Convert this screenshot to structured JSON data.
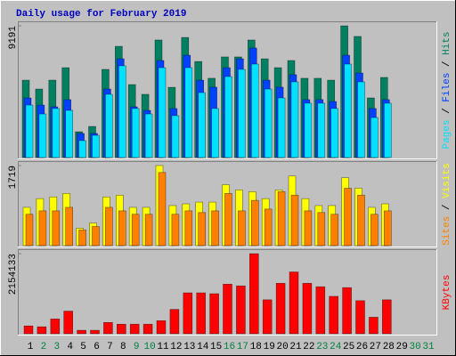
{
  "chart_data": {
    "type": "bar",
    "title": "Daily usage for February 2019",
    "categories": [
      "1",
      "2",
      "3",
      "4",
      "5",
      "6",
      "7",
      "8",
      "9",
      "10",
      "11",
      "12",
      "13",
      "14",
      "15",
      "16",
      "17",
      "18",
      "19",
      "20",
      "21",
      "22",
      "23",
      "24",
      "25",
      "26",
      "27",
      "28",
      "29",
      "30",
      "31"
    ],
    "category_colors": [
      "#000000",
      "#008040",
      "#008040",
      "#000000",
      "#000000",
      "#000000",
      "#000000",
      "#000000",
      "#008040",
      "#008040",
      "#000000",
      "#000000",
      "#000000",
      "#000000",
      "#000000",
      "#008040",
      "#008040",
      "#000000",
      "#000000",
      "#000000",
      "#000000",
      "#000000",
      "#008040",
      "#008040",
      "#000000",
      "#000000",
      "#000000",
      "#000000",
      "#000000",
      "#008040",
      "#008040"
    ],
    "legend_separator": " / ",
    "panels": [
      {
        "ylim": [
          0,
          9191
        ],
        "yticks": [
          9191
        ],
        "series": [
          {
            "name": "Pages",
            "color": "#00e0ff",
            "values": [
              3660,
              3040,
              3420,
              3290,
              1180,
              1550,
              4410,
              6400,
              3420,
              3040,
              6270,
              2920,
              6270,
              4530,
              3420,
              5650,
              6150,
              6520,
              4780,
              4160,
              5280,
              3790,
              3790,
              3420,
              6520,
              5280,
              2790,
              3790,
              0,
              0,
              0
            ]
          },
          {
            "name": "Files",
            "color": "#0040ff",
            "values": [
              4160,
              3660,
              3540,
              4040,
              1680,
              1680,
              4780,
              6890,
              3540,
              3290,
              6770,
              3420,
              7140,
              5400,
              4910,
              6270,
              6890,
              7640,
              5400,
              4910,
              5780,
              4040,
              4040,
              3910,
              7140,
              5900,
              3420,
              4040,
              0,
              0,
              0
            ]
          },
          {
            "name": "Hits",
            "color": "#008060",
            "values": [
              5400,
              4780,
              5400,
              6270,
              1800,
              2170,
              6150,
              7760,
              5090,
              4410,
              8200,
              4900,
              8380,
              6700,
              5530,
              7020,
              7020,
              8200,
              6890,
              6270,
              6770,
              5530,
              5530,
              5400,
              9191,
              8450,
              4160,
              5590,
              0,
              0,
              0
            ]
          }
        ]
      },
      {
        "ylim": [
          0,
          1719
        ],
        "yticks": [
          1719
        ],
        "series": [
          {
            "name": "Sites",
            "color": "#ff8000",
            "values": [
              673,
              747,
              747,
              822,
              336,
              411,
              822,
              747,
              673,
              673,
              1570,
              673,
              747,
              710,
              747,
              1121,
              747,
              972,
              785,
              1158,
              1084,
              747,
              710,
              673,
              1233,
              1084,
              673,
              747,
              0,
              0,
              0
            ]
          },
          {
            "name": "Visits",
            "color": "#ffff00",
            "values": [
              822,
              1009,
              1046,
              1121,
              374,
              486,
              1046,
              1084,
              822,
              822,
              1719,
              860,
              897,
              934,
              934,
              1308,
              1196,
              1158,
              1009,
              1196,
              1495,
              1009,
              860,
              860,
              1457,
              1233,
              822,
              897,
              0,
              0,
              0
            ]
          }
        ]
      },
      {
        "ylim": [
          0,
          2154133
        ],
        "yticks": [
          2154133
        ],
        "series": [
          {
            "name": "KBytes",
            "color": "#ff0000",
            "values": [
              210700,
              187300,
              398000,
              608800,
              93700,
              93700,
              304400,
              257500,
              257500,
              257500,
              351200,
              655600,
              1100500,
              1100500,
              1077100,
              1334600,
              1287800,
              2154133,
              913200,
              1358000,
              1662400,
              1358000,
              1264400,
              1006800,
              1241000,
              889700,
              444900,
              913200,
              0,
              0,
              0
            ]
          }
        ]
      }
    ]
  }
}
